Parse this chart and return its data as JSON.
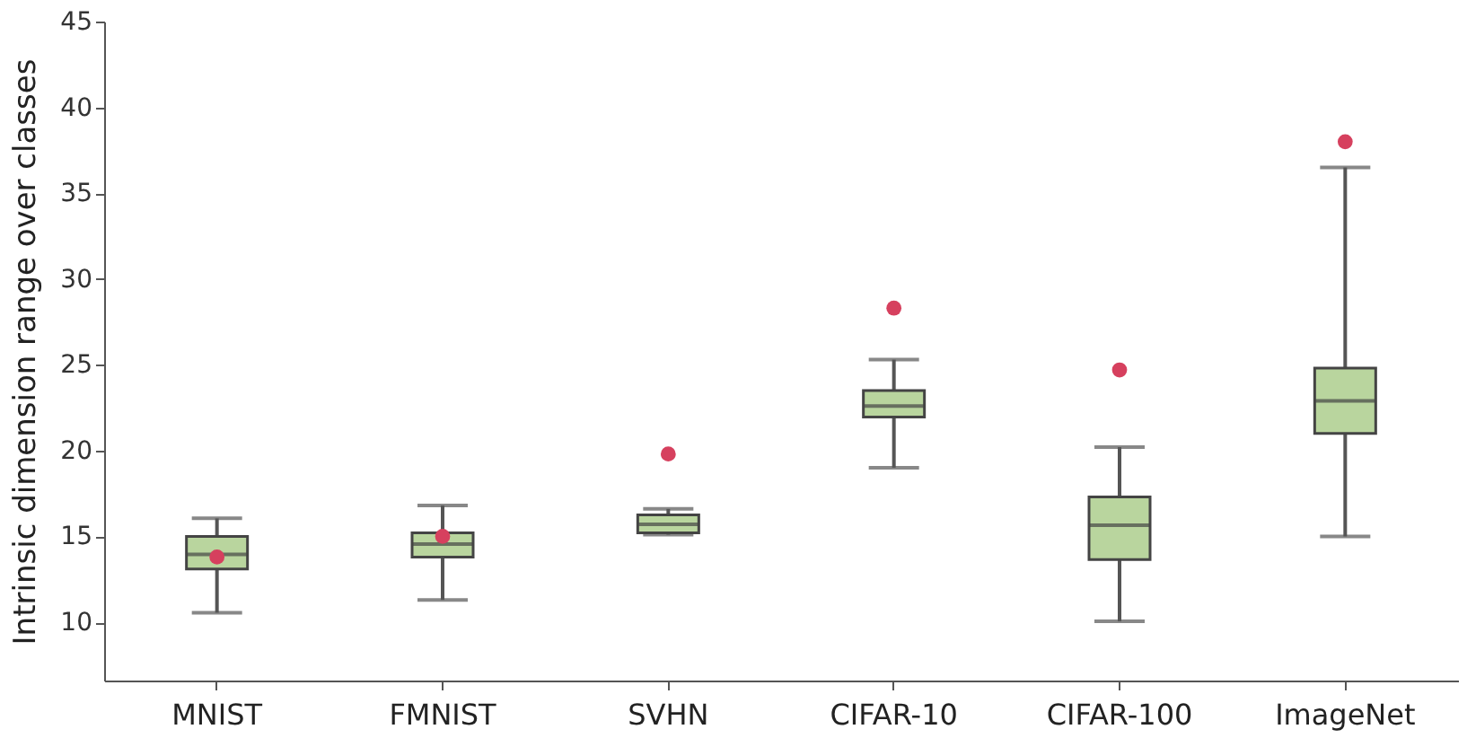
{
  "chart_data": {
    "type": "box",
    "ylabel": "Intrinsic dimension range over classes",
    "categories": [
      "MNIST",
      "FMNIST",
      "SVHN",
      "CIFAR-10",
      "CIFAR-100",
      "ImageNet"
    ],
    "ylim": [
      6.6,
      45
    ],
    "yticks": [
      10,
      15,
      20,
      25,
      30,
      35,
      40,
      45
    ],
    "grid": false,
    "series": [
      {
        "color": "#b9d59e",
        "boxes": [
          {
            "low": 10.55,
            "q1": 13.1,
            "median": 13.95,
            "q3": 15.0,
            "high": 16.05
          },
          {
            "low": 11.3,
            "q1": 13.8,
            "median": 14.55,
            "q3": 15.2,
            "high": 16.8
          },
          {
            "low": 15.1,
            "q1": 15.2,
            "median": 15.7,
            "q3": 16.25,
            "high": 16.6
          },
          {
            "low": 19.0,
            "q1": 21.95,
            "median": 22.6,
            "q3": 23.5,
            "high": 25.3
          },
          {
            "low": 10.05,
            "q1": 13.65,
            "median": 15.65,
            "q3": 17.3,
            "high": 20.2
          },
          {
            "low": 15.0,
            "q1": 21.0,
            "median": 22.9,
            "q3": 24.8,
            "high": 36.5
          }
        ]
      },
      {
        "type": "scatter",
        "color": "#d6405e",
        "marker": "circle",
        "x": [
          "MNIST",
          "FMNIST",
          "SVHN",
          "CIFAR-10",
          "CIFAR-100",
          "ImageNet"
        ],
        "values": [
          13.8,
          15.0,
          19.8,
          28.3,
          24.7,
          38.0
        ]
      }
    ]
  }
}
